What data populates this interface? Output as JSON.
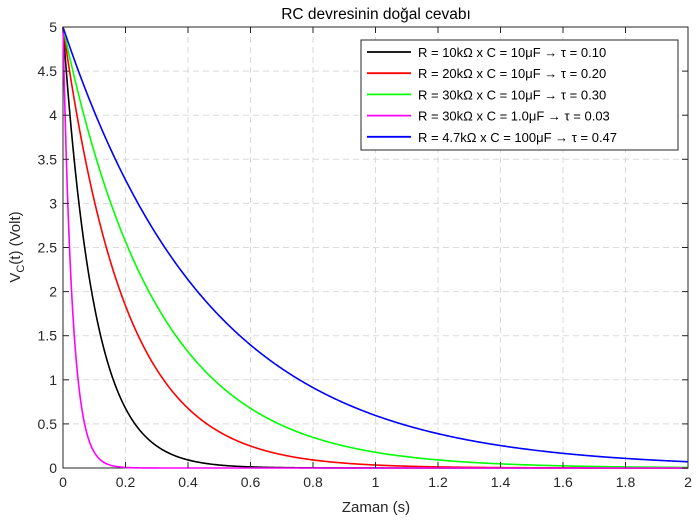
{
  "chart_data": {
    "type": "line",
    "title": "RC devresinin doğal cevabı",
    "xlabel": "Zaman (s)",
    "ylabel": "V_C(t) (Volt)",
    "xlim": [
      0,
      2
    ],
    "ylim": [
      0,
      5
    ],
    "xticks": [
      0,
      0.2,
      0.4,
      0.6,
      0.8,
      1,
      1.2,
      1.4,
      1.6,
      1.8,
      2
    ],
    "xtick_labels": [
      "0",
      "0.2",
      "0.4",
      "0.6",
      "0.8",
      "1",
      "1.2",
      "1.4",
      "1.6",
      "1.8",
      "2"
    ],
    "yticks": [
      0,
      0.5,
      1,
      1.5,
      2,
      2.5,
      3,
      3.5,
      4,
      4.5,
      5
    ],
    "ytick_labels": [
      "0",
      "0.5",
      "1",
      "1.5",
      "2",
      "2.5",
      "3",
      "3.5",
      "4",
      "4.5",
      "5"
    ],
    "grid": true,
    "legend_position": "top-right",
    "V0": 5,
    "series": [
      {
        "name": "R = 10kΩ  x  C = 10μF  →  τ = 0.10",
        "tau": 0.1,
        "color": "#000000"
      },
      {
        "name": "R = 20kΩ  x  C = 10μF  →  τ = 0.20",
        "tau": 0.2,
        "color": "#ff0000"
      },
      {
        "name": "R = 30kΩ  x  C = 10μF  →  τ = 0.30",
        "tau": 0.3,
        "color": "#00ff00"
      },
      {
        "name": "R = 30kΩ  x  C = 1.0μF  →  τ = 0.03",
        "tau": 0.03,
        "color": "#ff00ff"
      },
      {
        "name": "R = 4.7kΩ  x  C = 100μF  →  τ = 0.47",
        "tau": 0.47,
        "color": "#0000ff"
      }
    ]
  }
}
